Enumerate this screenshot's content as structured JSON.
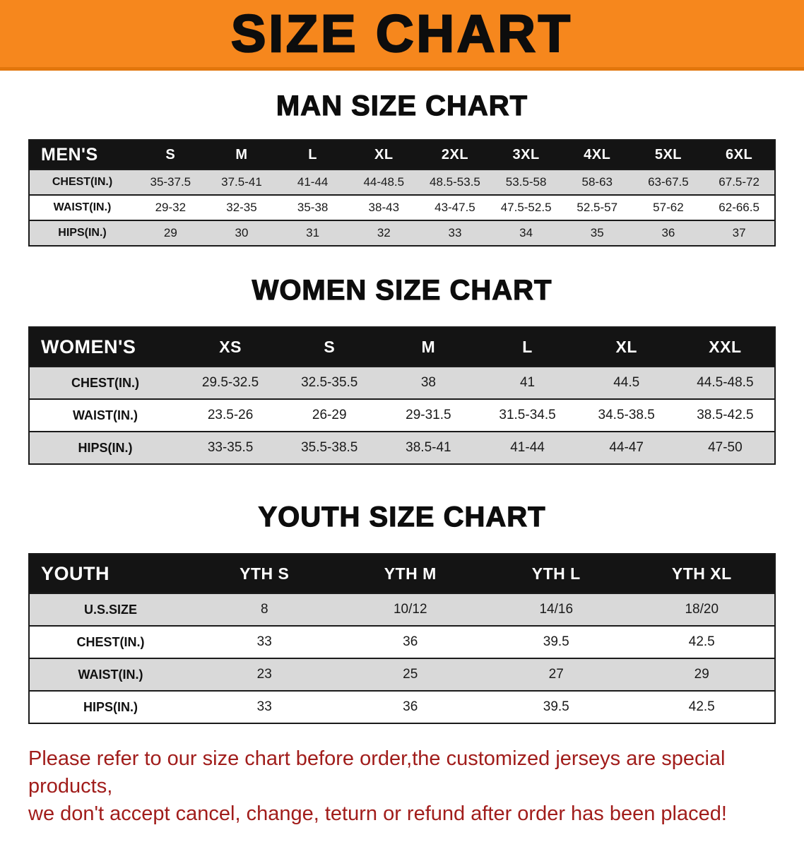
{
  "banner": {
    "title": "SIZE CHART"
  },
  "colors": {
    "banner_bg": "#f6871d",
    "table_header_bg": "#141414",
    "row_alt_gray": "#d9d9d9",
    "note_red": "#a11d1b"
  },
  "sections": [
    {
      "heading": "MAN SIZE CHART",
      "table": {
        "name": "mens",
        "label": "MEN'S",
        "columns": [
          "S",
          "M",
          "L",
          "XL",
          "2XL",
          "3XL",
          "4XL",
          "5XL",
          "6XL"
        ],
        "rows": [
          {
            "label": "CHEST(IN.)",
            "values": [
              "35-37.5",
              "37.5-41",
              "41-44",
              "44-48.5",
              "48.5-53.5",
              "53.5-58",
              "58-63",
              "63-67.5",
              "67.5-72"
            ]
          },
          {
            "label": "WAIST(IN.)",
            "values": [
              "29-32",
              "32-35",
              "35-38",
              "38-43",
              "43-47.5",
              "47.5-52.5",
              "52.5-57",
              "57-62",
              "62-66.5"
            ]
          },
          {
            "label": "HIPS(IN.)",
            "values": [
              "29",
              "30",
              "31",
              "32",
              "33",
              "34",
              "35",
              "36",
              "37"
            ]
          }
        ]
      }
    },
    {
      "heading": "WOMEN SIZE CHART",
      "table": {
        "name": "womens",
        "label": "WOMEN'S",
        "columns": [
          "XS",
          "S",
          "M",
          "L",
          "XL",
          "XXL"
        ],
        "rows": [
          {
            "label": "CHEST(IN.)",
            "values": [
              "29.5-32.5",
              "32.5-35.5",
              "38",
              "41",
              "44.5",
              "44.5-48.5"
            ]
          },
          {
            "label": "WAIST(IN.)",
            "values": [
              "23.5-26",
              "26-29",
              "29-31.5",
              "31.5-34.5",
              "34.5-38.5",
              "38.5-42.5"
            ]
          },
          {
            "label": "HIPS(IN.)",
            "values": [
              "33-35.5",
              "35.5-38.5",
              "38.5-41",
              "41-44",
              "44-47",
              "47-50"
            ]
          }
        ]
      }
    },
    {
      "heading": "YOUTH SIZE CHART",
      "table": {
        "name": "youth",
        "label": "YOUTH",
        "columns": [
          "YTH S",
          "YTH M",
          "YTH L",
          "YTH XL"
        ],
        "rows": [
          {
            "label": "U.S.SIZE",
            "values": [
              "8",
              "10/12",
              "14/16",
              "18/20"
            ]
          },
          {
            "label": "CHEST(IN.)",
            "values": [
              "33",
              "36",
              "39.5",
              "42.5"
            ]
          },
          {
            "label": "WAIST(IN.)",
            "values": [
              "23",
              "25",
              "27",
              "29"
            ]
          },
          {
            "label": "HIPS(IN.)",
            "values": [
              "33",
              "36",
              "39.5",
              "42.5"
            ]
          }
        ]
      }
    }
  ],
  "note": {
    "line1": "Please refer to our size chart before order,the customized jerseys are special products,",
    "line2": "we don't accept cancel, change, teturn or refund after order has been placed!"
  }
}
